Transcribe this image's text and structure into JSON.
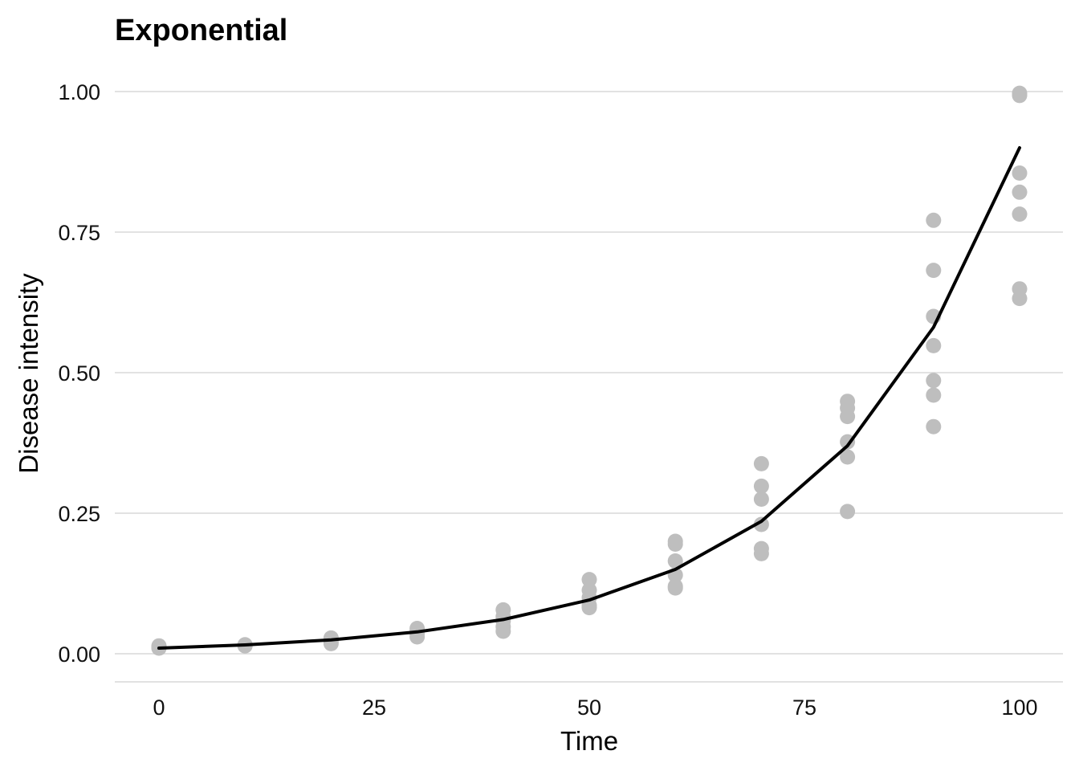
{
  "chart_data": {
    "type": "scatter",
    "title": "Exponential",
    "xlabel": "Time",
    "ylabel": "Disease intensity",
    "xlim": [
      -5,
      105
    ],
    "ylim": [
      -0.05,
      1.0
    ],
    "x_ticks": [
      0,
      25,
      50,
      75,
      100
    ],
    "x_tick_labels": [
      "0",
      "25",
      "50",
      "75",
      "100"
    ],
    "y_ticks": [
      0,
      0.25,
      0.5,
      0.75,
      1.0
    ],
    "y_tick_labels": [
      "0.00",
      "0.25",
      "0.50",
      "0.75",
      "1.00"
    ],
    "grid": "horizontal",
    "legend": "none",
    "colors": {
      "points": "#bebebe",
      "line": "#000000",
      "grid": "#d9d9d9"
    },
    "series": [
      {
        "kind": "scatter",
        "points": [
          [
            0,
            0.01
          ],
          [
            0,
            0.012
          ],
          [
            0,
            0.014
          ],
          [
            0,
            0.011
          ],
          [
            10,
            0.015
          ],
          [
            10,
            0.016
          ],
          [
            10,
            0.014
          ],
          [
            20,
            0.018
          ],
          [
            20,
            0.022
          ],
          [
            20,
            0.026
          ],
          [
            20,
            0.028
          ],
          [
            30,
            0.03
          ],
          [
            30,
            0.036
          ],
          [
            30,
            0.04
          ],
          [
            30,
            0.045
          ],
          [
            40,
            0.04
          ],
          [
            40,
            0.048
          ],
          [
            40,
            0.058
          ],
          [
            40,
            0.066
          ],
          [
            40,
            0.078
          ],
          [
            50,
            0.082
          ],
          [
            50,
            0.086
          ],
          [
            50,
            0.1
          ],
          [
            50,
            0.113
          ],
          [
            50,
            0.132
          ],
          [
            60,
            0.117
          ],
          [
            60,
            0.12
          ],
          [
            60,
            0.14
          ],
          [
            60,
            0.165
          ],
          [
            60,
            0.195
          ],
          [
            60,
            0.2
          ],
          [
            70,
            0.178
          ],
          [
            70,
            0.187
          ],
          [
            70,
            0.23
          ],
          [
            70,
            0.275
          ],
          [
            70,
            0.298
          ],
          [
            70,
            0.338
          ],
          [
            80,
            0.253
          ],
          [
            80,
            0.35
          ],
          [
            80,
            0.377
          ],
          [
            80,
            0.422
          ],
          [
            80,
            0.437
          ],
          [
            80,
            0.449
          ],
          [
            90,
            0.404
          ],
          [
            90,
            0.46
          ],
          [
            90,
            0.486
          ],
          [
            90,
            0.548
          ],
          [
            90,
            0.6
          ],
          [
            90,
            0.682
          ],
          [
            90,
            0.771
          ],
          [
            100,
            0.632
          ],
          [
            100,
            0.649
          ],
          [
            100,
            0.782
          ],
          [
            100,
            0.821
          ],
          [
            100,
            0.855
          ],
          [
            100,
            0.993
          ],
          [
            100,
            0.997
          ]
        ]
      },
      {
        "kind": "line",
        "x": [
          0,
          10,
          20,
          30,
          40,
          50,
          60,
          70,
          80,
          90,
          100
        ],
        "y": [
          0.01,
          0.0157,
          0.0247,
          0.0388,
          0.0609,
          0.0956,
          0.15,
          0.2356,
          0.3698,
          0.5807,
          0.9
        ]
      }
    ]
  }
}
